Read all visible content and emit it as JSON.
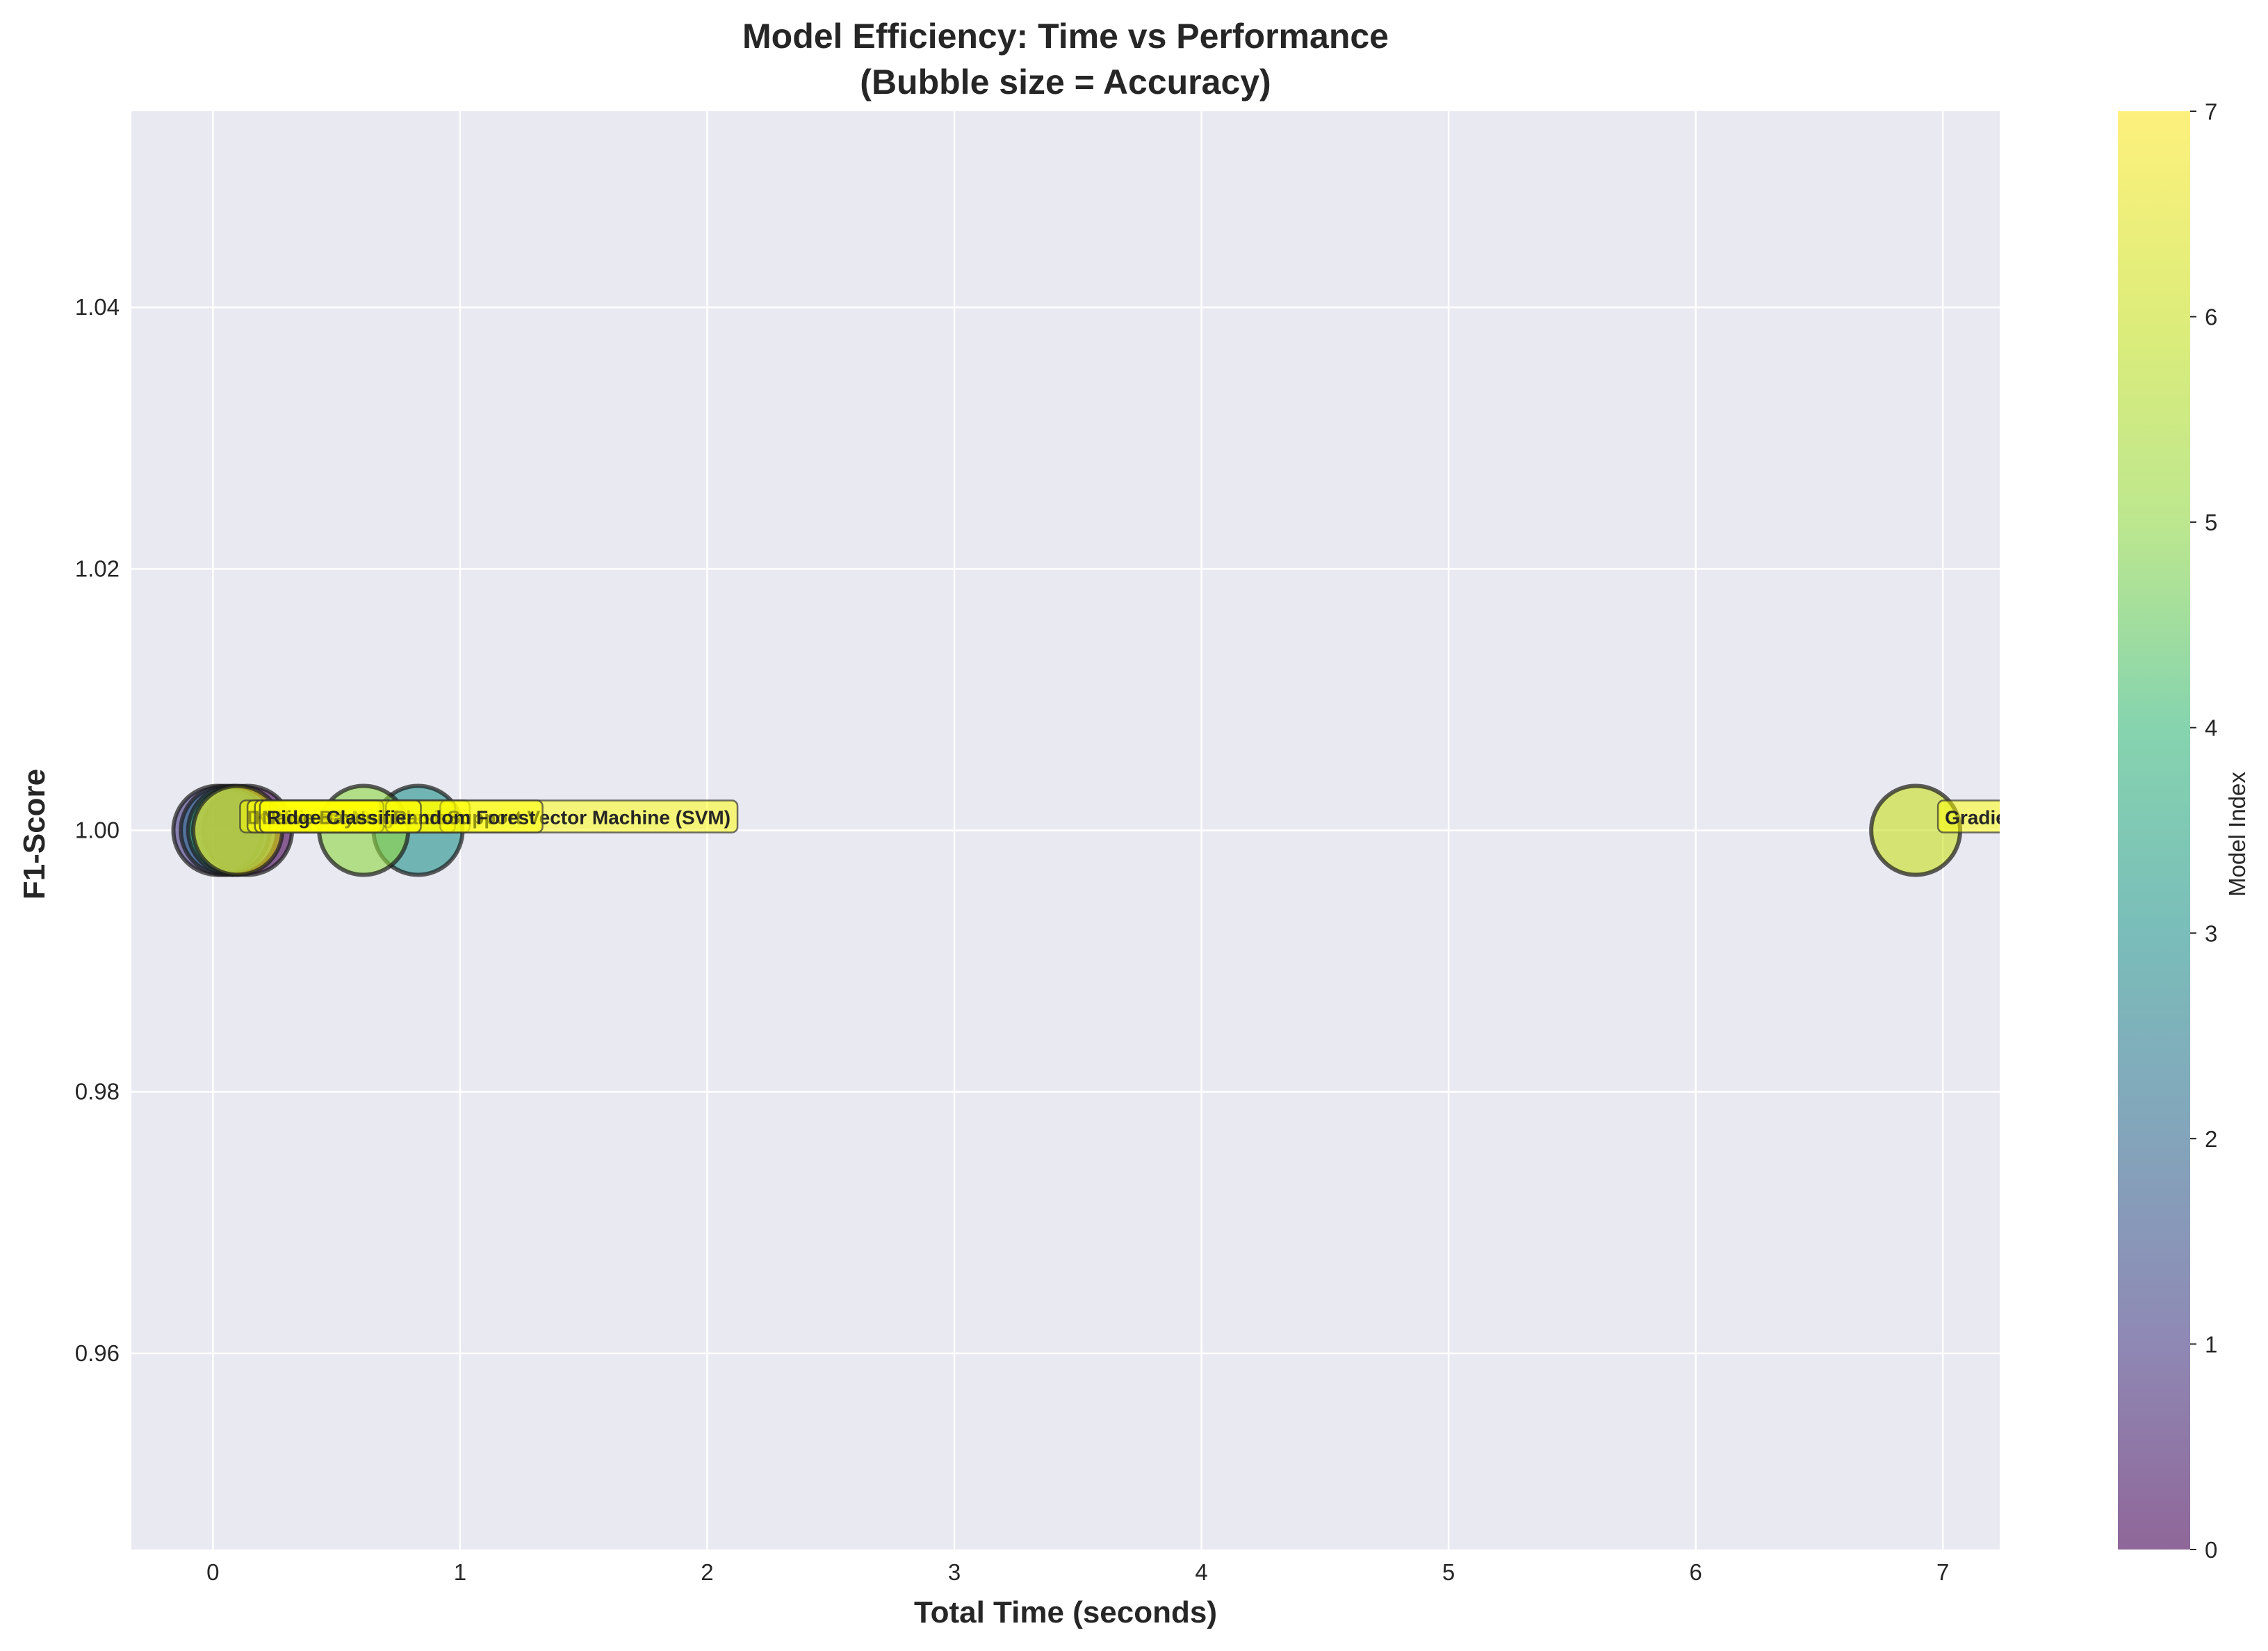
{
  "chart_data": {
    "type": "scatter",
    "title": "Model Efficiency: Time vs Performance",
    "subtitle": "(Bubble size = Accuracy)",
    "xlabel": "Total Time (seconds)",
    "ylabel": "F1-Score",
    "xlim": [
      -0.33,
      7.23
    ],
    "ylim": [
      0.945,
      1.055
    ],
    "xticks": [
      0,
      1,
      2,
      3,
      4,
      5,
      6,
      7
    ],
    "yticks": [
      0.96,
      0.98,
      1.0,
      1.02,
      1.04
    ],
    "ytick_labels": [
      "0.96",
      "0.98",
      "1.00",
      "1.02",
      "1.04"
    ],
    "grid": true,
    "background": "#e9e9f1",
    "colorbar": {
      "label": "Model Index",
      "range": [
        0,
        7
      ],
      "ticks": [
        0,
        1,
        2,
        3,
        4,
        5,
        6,
        7
      ],
      "colormap": "viridis"
    },
    "points": [
      {
        "x": 0.14,
        "y": 1.0,
        "color_value": 0,
        "label": "Logistic Regression"
      },
      {
        "x": 0.02,
        "y": 1.0,
        "color_value": 1,
        "label": "Decision Tree"
      },
      {
        "x": 0.05,
        "y": 1.0,
        "color_value": 2,
        "label": "K-Nearest Neighbors"
      },
      {
        "x": 0.83,
        "y": 1.0,
        "color_value": 3,
        "label": "Support Vector Machine (SVM)"
      },
      {
        "x": 0.08,
        "y": 1.0,
        "color_value": 4,
        "label": "Naive Bayes"
      },
      {
        "x": 0.61,
        "y": 1.0,
        "color_value": 5,
        "label": "Random Forest"
      },
      {
        "x": 6.89,
        "y": 1.0,
        "color_value": 6,
        "label": "Gradient Boosting"
      },
      {
        "x": 0.1,
        "y": 1.0,
        "color_value": 7,
        "label": "Ridge Classifier"
      }
    ]
  }
}
